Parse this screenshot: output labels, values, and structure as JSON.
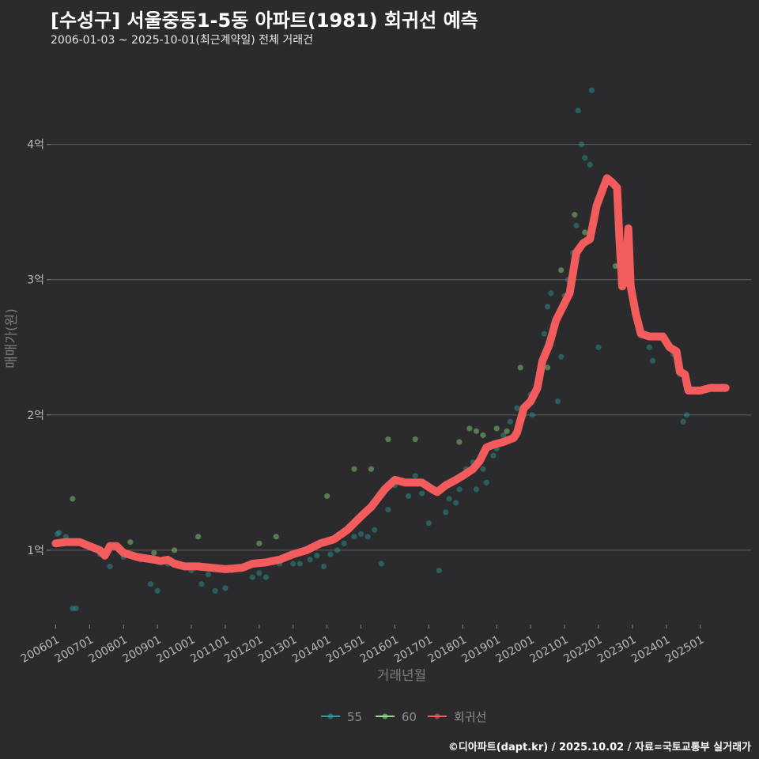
{
  "header": {
    "title": "[수성구] 서울중동1-5동 아파트(1981) 회귀선 예측",
    "subtitle": "2006-01-03 ~ 2025-10-01(최근계약일) 전체 거래건"
  },
  "footer": {
    "credit": "©디아파트(dapt.kr) / 2025.10.02 / 자료=국토교통부 실거래가"
  },
  "colors": {
    "background": "#2b2a2c",
    "grid": "#5f5f5f",
    "s55": "#2a9d9d",
    "s60": "#8fe07a",
    "regression": "#f25c5c"
  },
  "chart_data": {
    "type": "scatter",
    "title": "[수성구] 서울중동1-5동 아파트(1981) 회귀선 예측",
    "xlabel": "거래년월",
    "ylabel": "매매가(원)",
    "x_unit": "decimal year",
    "y_unit": "억 원",
    "xlim": [
      2005.85,
      2026.5
    ],
    "ylim": [
      0.45,
      4.6
    ],
    "x_ticks": [
      {
        "value": 2006.0,
        "label": "200601"
      },
      {
        "value": 2007.0,
        "label": "200701"
      },
      {
        "value": 2008.0,
        "label": "200801"
      },
      {
        "value": 2009.0,
        "label": "200901"
      },
      {
        "value": 2010.0,
        "label": "201001"
      },
      {
        "value": 2011.0,
        "label": "201101"
      },
      {
        "value": 2012.0,
        "label": "201201"
      },
      {
        "value": 2013.0,
        "label": "201301"
      },
      {
        "value": 2014.0,
        "label": "201401"
      },
      {
        "value": 2015.0,
        "label": "201501"
      },
      {
        "value": 2016.0,
        "label": "201601"
      },
      {
        "value": 2017.0,
        "label": "201701"
      },
      {
        "value": 2018.0,
        "label": "201801"
      },
      {
        "value": 2019.0,
        "label": "201901"
      },
      {
        "value": 2020.0,
        "label": "202001"
      },
      {
        "value": 2021.0,
        "label": "202101"
      },
      {
        "value": 2022.0,
        "label": "202201"
      },
      {
        "value": 2023.0,
        "label": "202301"
      },
      {
        "value": 2024.0,
        "label": "202401"
      },
      {
        "value": 2025.0,
        "label": "202501"
      }
    ],
    "y_ticks": [
      {
        "value": 1,
        "label": "1억"
      },
      {
        "value": 2,
        "label": "2억"
      },
      {
        "value": 3,
        "label": "3억"
      },
      {
        "value": 4,
        "label": "4억"
      }
    ],
    "legend": {
      "placement": "bottom",
      "entries": [
        "55",
        "60",
        "회귀선"
      ]
    },
    "series": [
      {
        "name": "55",
        "kind": "scatter",
        "color": "#2a9d9d",
        "points": [
          [
            2006.05,
            1.12
          ],
          [
            2006.1,
            1.13
          ],
          [
            2006.3,
            1.1
          ],
          [
            2006.5,
            0.57
          ],
          [
            2006.6,
            0.57
          ],
          [
            2006.8,
            1.06
          ],
          [
            2007.3,
            0.97
          ],
          [
            2007.6,
            0.88
          ],
          [
            2008.0,
            0.95
          ],
          [
            2008.5,
            0.93
          ],
          [
            2008.8,
            0.75
          ],
          [
            2009.0,
            0.7
          ],
          [
            2009.3,
            0.9
          ],
          [
            2009.8,
            0.87
          ],
          [
            2010.0,
            0.85
          ],
          [
            2010.3,
            0.75
          ],
          [
            2010.5,
            0.82
          ],
          [
            2010.7,
            0.7
          ],
          [
            2011.0,
            0.72
          ],
          [
            2011.2,
            0.85
          ],
          [
            2011.6,
            0.87
          ],
          [
            2011.8,
            0.8
          ],
          [
            2012.0,
            0.83
          ],
          [
            2012.2,
            0.8
          ],
          [
            2012.4,
            0.92
          ],
          [
            2012.6,
            0.9
          ],
          [
            2012.9,
            0.95
          ],
          [
            2013.0,
            0.9
          ],
          [
            2013.2,
            0.9
          ],
          [
            2013.5,
            0.93
          ],
          [
            2013.7,
            0.96
          ],
          [
            2013.9,
            0.88
          ],
          [
            2014.1,
            0.97
          ],
          [
            2014.3,
            1.0
          ],
          [
            2014.5,
            1.05
          ],
          [
            2014.8,
            1.1
          ],
          [
            2015.0,
            1.12
          ],
          [
            2015.2,
            1.1
          ],
          [
            2015.4,
            1.15
          ],
          [
            2015.6,
            0.9
          ],
          [
            2015.8,
            1.3
          ],
          [
            2016.0,
            1.48
          ],
          [
            2016.2,
            1.5
          ],
          [
            2016.4,
            1.4
          ],
          [
            2016.6,
            1.55
          ],
          [
            2016.8,
            1.42
          ],
          [
            2017.0,
            1.2
          ],
          [
            2017.3,
            0.85
          ],
          [
            2017.5,
            1.28
          ],
          [
            2017.6,
            1.38
          ],
          [
            2017.8,
            1.35
          ],
          [
            2017.9,
            1.45
          ],
          [
            2018.0,
            1.55
          ],
          [
            2018.1,
            1.6
          ],
          [
            2018.3,
            1.65
          ],
          [
            2018.4,
            1.45
          ],
          [
            2018.6,
            1.6
          ],
          [
            2018.7,
            1.5
          ],
          [
            2018.9,
            1.7
          ],
          [
            2019.0,
            1.75
          ],
          [
            2019.2,
            1.85
          ],
          [
            2019.4,
            1.95
          ],
          [
            2019.6,
            2.05
          ],
          [
            2019.8,
            2.0
          ],
          [
            2020.0,
            2.15
          ],
          [
            2020.05,
            2.0
          ],
          [
            2020.2,
            2.2
          ],
          [
            2020.4,
            2.6
          ],
          [
            2020.5,
            2.8
          ],
          [
            2020.6,
            2.9
          ],
          [
            2020.8,
            2.1
          ],
          [
            2020.9,
            2.43
          ],
          [
            2021.0,
            2.88
          ],
          [
            2021.1,
            3.0
          ],
          [
            2021.25,
            3.2
          ],
          [
            2021.35,
            3.4
          ],
          [
            2021.4,
            4.25
          ],
          [
            2021.5,
            4.0
          ],
          [
            2021.6,
            3.9
          ],
          [
            2021.75,
            3.85
          ],
          [
            2021.8,
            4.4
          ],
          [
            2022.0,
            2.5
          ],
          [
            2022.2,
            3.7
          ],
          [
            2022.6,
            3.1
          ],
          [
            2023.5,
            2.5
          ],
          [
            2023.6,
            2.4
          ],
          [
            2024.2,
            2.45
          ],
          [
            2024.4,
            2.3
          ],
          [
            2024.5,
            1.95
          ],
          [
            2024.6,
            2.0
          ]
        ]
      },
      {
        "name": "60",
        "kind": "scatter",
        "color": "#8fe07a",
        "points": [
          [
            2006.5,
            1.38
          ],
          [
            2008.2,
            1.06
          ],
          [
            2008.9,
            0.98
          ],
          [
            2009.5,
            1.0
          ],
          [
            2010.2,
            1.1
          ],
          [
            2012.0,
            1.05
          ],
          [
            2012.5,
            1.1
          ],
          [
            2014.0,
            1.4
          ],
          [
            2014.8,
            1.6
          ],
          [
            2015.3,
            1.6
          ],
          [
            2015.8,
            1.82
          ],
          [
            2016.6,
            1.82
          ],
          [
            2017.9,
            1.8
          ],
          [
            2018.2,
            1.9
          ],
          [
            2018.4,
            1.88
          ],
          [
            2018.6,
            1.85
          ],
          [
            2019.0,
            1.9
          ],
          [
            2019.3,
            1.88
          ],
          [
            2019.7,
            2.35
          ],
          [
            2020.5,
            2.35
          ],
          [
            2020.9,
            3.07
          ],
          [
            2021.3,
            3.48
          ],
          [
            2021.6,
            3.35
          ],
          [
            2022.5,
            3.1
          ]
        ]
      },
      {
        "name": "회귀선",
        "kind": "line",
        "color": "#f25c5c",
        "points": [
          [
            2006.0,
            1.05
          ],
          [
            2006.3,
            1.06
          ],
          [
            2006.7,
            1.06
          ],
          [
            2007.0,
            1.03
          ],
          [
            2007.3,
            1.0
          ],
          [
            2007.45,
            0.96
          ],
          [
            2007.6,
            1.03
          ],
          [
            2007.8,
            1.03
          ],
          [
            2008.0,
            0.98
          ],
          [
            2008.4,
            0.95
          ],
          [
            2008.9,
            0.93
          ],
          [
            2009.1,
            0.92
          ],
          [
            2009.3,
            0.93
          ],
          [
            2009.5,
            0.9
          ],
          [
            2009.8,
            0.88
          ],
          [
            2010.2,
            0.88
          ],
          [
            2010.6,
            0.87
          ],
          [
            2011.0,
            0.86
          ],
          [
            2011.5,
            0.87
          ],
          [
            2011.8,
            0.9
          ],
          [
            2012.2,
            0.91
          ],
          [
            2012.6,
            0.93
          ],
          [
            2013.0,
            0.97
          ],
          [
            2013.4,
            1.0
          ],
          [
            2013.8,
            1.05
          ],
          [
            2014.2,
            1.08
          ],
          [
            2014.6,
            1.15
          ],
          [
            2015.0,
            1.25
          ],
          [
            2015.3,
            1.32
          ],
          [
            2015.7,
            1.45
          ],
          [
            2016.0,
            1.52
          ],
          [
            2016.3,
            1.5
          ],
          [
            2016.8,
            1.5
          ],
          [
            2017.1,
            1.45
          ],
          [
            2017.25,
            1.43
          ],
          [
            2017.5,
            1.48
          ],
          [
            2017.8,
            1.52
          ],
          [
            2018.0,
            1.55
          ],
          [
            2018.3,
            1.6
          ],
          [
            2018.5,
            1.66
          ],
          [
            2018.7,
            1.76
          ],
          [
            2018.9,
            1.78
          ],
          [
            2019.2,
            1.8
          ],
          [
            2019.5,
            1.83
          ],
          [
            2019.6,
            1.87
          ],
          [
            2019.8,
            2.05
          ],
          [
            2020.0,
            2.1
          ],
          [
            2020.2,
            2.2
          ],
          [
            2020.35,
            2.4
          ],
          [
            2020.55,
            2.52
          ],
          [
            2020.75,
            2.7
          ],
          [
            2020.95,
            2.8
          ],
          [
            2021.15,
            2.9
          ],
          [
            2021.35,
            3.2
          ],
          [
            2021.55,
            3.27
          ],
          [
            2021.75,
            3.3
          ],
          [
            2021.95,
            3.55
          ],
          [
            2022.1,
            3.65
          ],
          [
            2022.25,
            3.75
          ],
          [
            2022.4,
            3.72
          ],
          [
            2022.55,
            3.68
          ],
          [
            2022.62,
            3.3
          ],
          [
            2022.7,
            2.95
          ],
          [
            2022.8,
            3.0
          ],
          [
            2022.88,
            3.38
          ],
          [
            2022.95,
            2.95
          ],
          [
            2023.1,
            2.75
          ],
          [
            2023.25,
            2.6
          ],
          [
            2023.5,
            2.58
          ],
          [
            2023.9,
            2.58
          ],
          [
            2024.1,
            2.5
          ],
          [
            2024.3,
            2.47
          ],
          [
            2024.4,
            2.32
          ],
          [
            2024.55,
            2.3
          ],
          [
            2024.65,
            2.18
          ],
          [
            2025.0,
            2.18
          ],
          [
            2025.3,
            2.2
          ],
          [
            2025.75,
            2.2
          ]
        ]
      }
    ]
  }
}
